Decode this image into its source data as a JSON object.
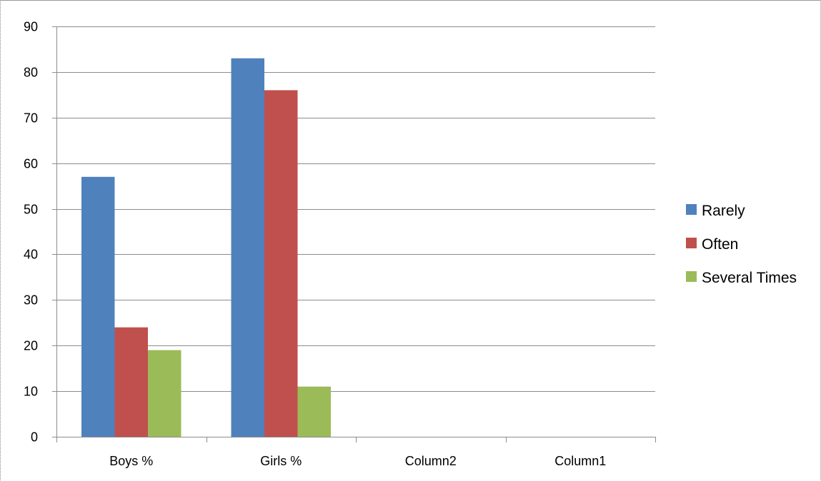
{
  "chart_data": {
    "type": "bar",
    "title": "",
    "xlabel": "",
    "ylabel": "",
    "categories": [
      "Boys %",
      "Girls %",
      "Column2",
      "Column1"
    ],
    "series": [
      {
        "name": "Rarely",
        "color": "#4f81bd",
        "values": [
          57,
          83,
          null,
          null
        ]
      },
      {
        "name": "Often",
        "color": "#c0504d",
        "values": [
          24,
          76,
          null,
          null
        ]
      },
      {
        "name": "Several Times",
        "color": "#9bbb59",
        "values": [
          19,
          11,
          null,
          null
        ]
      }
    ],
    "ylim": [
      0,
      90
    ],
    "yticks": [
      0,
      10,
      20,
      30,
      40,
      50,
      60,
      70,
      80,
      90
    ],
    "grid": true,
    "legend_position": "right"
  }
}
